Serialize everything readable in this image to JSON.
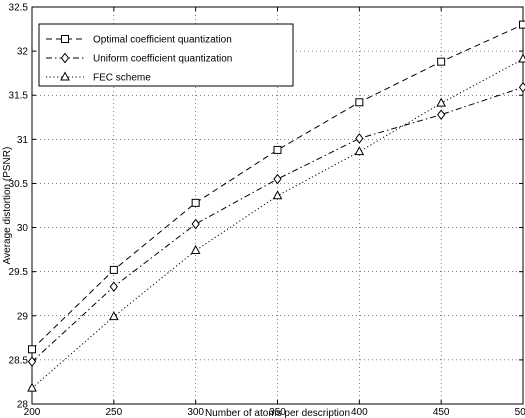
{
  "chart_data": {
    "type": "line",
    "xlabel": "Number of atoms per description",
    "ylabel": "Average distortion (PSNR)",
    "x": [
      200,
      250,
      300,
      350,
      400,
      450,
      500
    ],
    "xlim": [
      200,
      500
    ],
    "ylim": [
      28,
      32.5
    ],
    "xticks": [
      "200",
      "250",
      "300",
      "350",
      "400",
      "450",
      "500"
    ],
    "yticks": [
      "28",
      "28.5",
      "29",
      "29.5",
      "30",
      "30.5",
      "31",
      "31.5",
      "32",
      "32.5"
    ],
    "grid": true,
    "legend_position": "top-left",
    "series": [
      {
        "name": "Optimal coefficient quantization",
        "values": [
          28.62,
          29.52,
          30.28,
          30.88,
          31.42,
          31.88,
          32.3
        ],
        "line_style": "dashed",
        "marker": "square"
      },
      {
        "name": "Uniform coefficient quantization",
        "values": [
          28.48,
          29.33,
          30.04,
          30.55,
          31.01,
          31.28,
          31.59
        ],
        "line_style": "dashdot",
        "marker": "diamond"
      },
      {
        "name": "FEC scheme",
        "values": [
          28.18,
          28.99,
          29.74,
          30.36,
          30.86,
          31.41,
          31.91
        ],
        "line_style": "dotted",
        "marker": "triangle"
      }
    ]
  }
}
